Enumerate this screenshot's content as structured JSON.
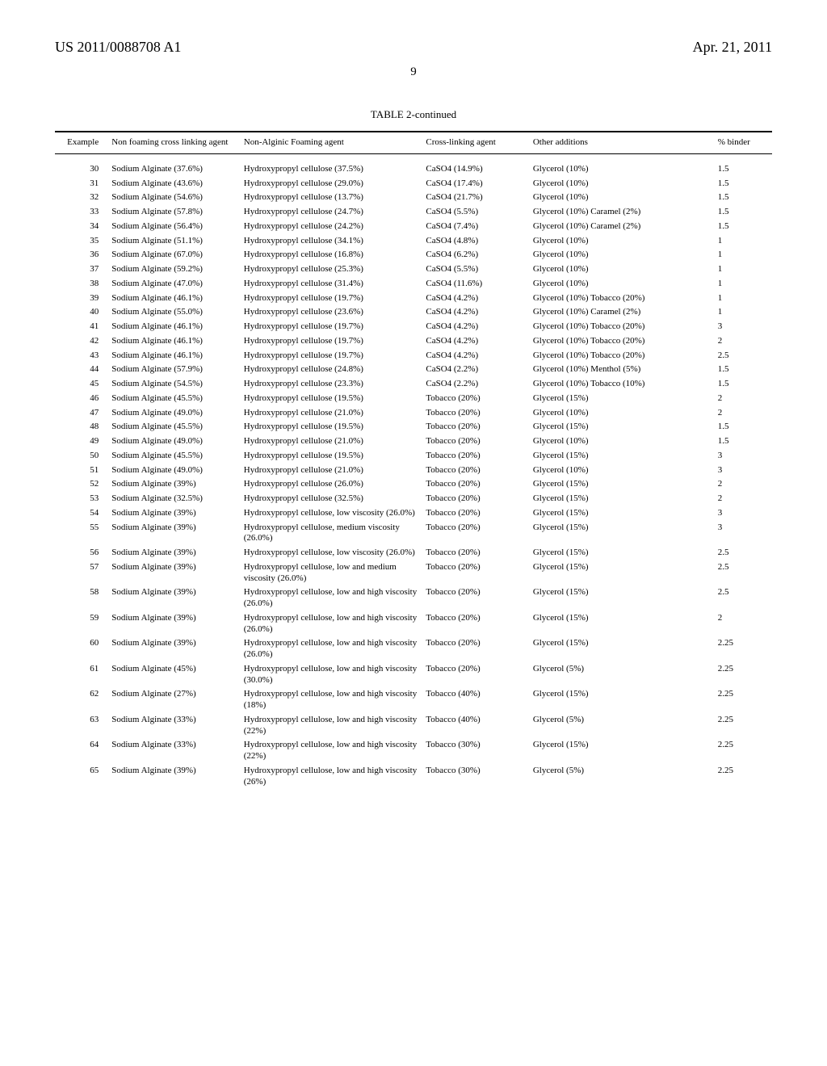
{
  "header": {
    "left": "US 2011/0088708 A1",
    "right": "Apr. 21, 2011"
  },
  "page_number": "9",
  "table_title": "TABLE 2-continued",
  "columns": {
    "example": "Example",
    "nonfoam": "Non foaming cross linking agent",
    "foaming": "Non-Alginic Foaming agent",
    "cross": "Cross-linking agent",
    "other": "Other additions",
    "binder": "% binder"
  },
  "rows": [
    {
      "ex": "30",
      "nf": "Sodium Alginate (37.6%)",
      "fa": "Hydroxypropyl cellulose (37.5%)",
      "cl": "CaSO4 (14.9%)",
      "ot": "Glycerol (10%)",
      "b": "1.5"
    },
    {
      "ex": "31",
      "nf": "Sodium Alginate (43.6%)",
      "fa": "Hydroxypropyl cellulose (29.0%)",
      "cl": "CaSO4 (17.4%)",
      "ot": "Glycerol (10%)",
      "b": "1.5"
    },
    {
      "ex": "32",
      "nf": "Sodium Alginate (54.6%)",
      "fa": "Hydroxypropyl cellulose (13.7%)",
      "cl": "CaSO4 (21.7%)",
      "ot": "Glycerol (10%)",
      "b": "1.5"
    },
    {
      "ex": "33",
      "nf": "Sodium Alginate (57.8%)",
      "fa": "Hydroxypropyl cellulose (24.7%)",
      "cl": "CaSO4 (5.5%)",
      "ot": "Glycerol (10%) Caramel (2%)",
      "b": "1.5"
    },
    {
      "ex": "34",
      "nf": "Sodium Alginate (56.4%)",
      "fa": "Hydroxypropyl cellulose (24.2%)",
      "cl": "CaSO4 (7.4%)",
      "ot": "Glycerol (10%) Caramel (2%)",
      "b": "1.5"
    },
    {
      "ex": "35",
      "nf": "Sodium Alginate (51.1%)",
      "fa": "Hydroxypropyl cellulose (34.1%)",
      "cl": "CaSO4 (4.8%)",
      "ot": "Glycerol (10%)",
      "b": "1"
    },
    {
      "ex": "36",
      "nf": "Sodium Alginate (67.0%)",
      "fa": "Hydroxypropyl cellulose (16.8%)",
      "cl": "CaSO4 (6.2%)",
      "ot": "Glycerol (10%)",
      "b": "1"
    },
    {
      "ex": "37",
      "nf": "Sodium Alginate (59.2%)",
      "fa": "Hydroxypropyl cellulose (25.3%)",
      "cl": "CaSO4 (5.5%)",
      "ot": "Glycerol (10%)",
      "b": "1"
    },
    {
      "ex": "38",
      "nf": "Sodium Alginate (47.0%)",
      "fa": "Hydroxypropyl cellulose (31.4%)",
      "cl": "CaSO4 (11.6%)",
      "ot": "Glycerol (10%)",
      "b": "1"
    },
    {
      "ex": "39",
      "nf": "Sodium Alginate (46.1%)",
      "fa": "Hydroxypropyl cellulose (19.7%)",
      "cl": "CaSO4 (4.2%)",
      "ot": "Glycerol (10%) Tobacco (20%)",
      "b": "1"
    },
    {
      "ex": "40",
      "nf": "Sodium Alginate (55.0%)",
      "fa": "Hydroxypropyl cellulose (23.6%)",
      "cl": "CaSO4 (4.2%)",
      "ot": "Glycerol (10%) Caramel (2%)",
      "b": "1"
    },
    {
      "ex": "41",
      "nf": "Sodium Alginate (46.1%)",
      "fa": "Hydroxypropyl cellulose (19.7%)",
      "cl": "CaSO4 (4.2%)",
      "ot": "Glycerol (10%) Tobacco (20%)",
      "b": "3"
    },
    {
      "ex": "42",
      "nf": "Sodium Alginate (46.1%)",
      "fa": "Hydroxypropyl cellulose (19.7%)",
      "cl": "CaSO4 (4.2%)",
      "ot": "Glycerol (10%) Tobacco (20%)",
      "b": "2"
    },
    {
      "ex": "43",
      "nf": "Sodium Alginate (46.1%)",
      "fa": "Hydroxypropyl cellulose (19.7%)",
      "cl": "CaSO4 (4.2%)",
      "ot": "Glycerol (10%) Tobacco (20%)",
      "b": "2.5"
    },
    {
      "ex": "44",
      "nf": "Sodium Alginate (57.9%)",
      "fa": "Hydroxypropyl cellulose (24.8%)",
      "cl": "CaSO4 (2.2%)",
      "ot": "Glycerol (10%) Menthol (5%)",
      "b": "1.5"
    },
    {
      "ex": "45",
      "nf": "Sodium Alginate (54.5%)",
      "fa": "Hydroxypropyl cellulose (23.3%)",
      "cl": "CaSO4 (2.2%)",
      "ot": "Glycerol (10%) Tobacco (10%)",
      "b": "1.5"
    },
    {
      "ex": "46",
      "nf": "Sodium Alginate (45.5%)",
      "fa": "Hydroxypropyl cellulose (19.5%)",
      "cl": "Tobacco (20%)",
      "ot": "Glycerol (15%)",
      "b": "2"
    },
    {
      "ex": "47",
      "nf": "Sodium Alginate (49.0%)",
      "fa": "Hydroxypropyl cellulose (21.0%)",
      "cl": "Tobacco (20%)",
      "ot": "Glycerol (10%)",
      "b": "2"
    },
    {
      "ex": "48",
      "nf": "Sodium Alginate (45.5%)",
      "fa": "Hydroxypropyl cellulose (19.5%)",
      "cl": "Tobacco (20%)",
      "ot": "Glycerol (15%)",
      "b": "1.5"
    },
    {
      "ex": "49",
      "nf": "Sodium Alginate (49.0%)",
      "fa": "Hydroxypropyl cellulose (21.0%)",
      "cl": "Tobacco (20%)",
      "ot": "Glycerol (10%)",
      "b": "1.5"
    },
    {
      "ex": "50",
      "nf": "Sodium Alginate (45.5%)",
      "fa": "Hydroxypropyl cellulose (19.5%)",
      "cl": "Tobacco (20%)",
      "ot": "Glycerol (15%)",
      "b": "3"
    },
    {
      "ex": "51",
      "nf": "Sodium Alginate (49.0%)",
      "fa": "Hydroxypropyl cellulose (21.0%)",
      "cl": "Tobacco (20%)",
      "ot": "Glycerol (10%)",
      "b": "3"
    },
    {
      "ex": "52",
      "nf": "Sodium Alginate (39%)",
      "fa": "Hydroxypropyl cellulose (26.0%)",
      "cl": "Tobacco (20%)",
      "ot": "Glycerol (15%)",
      "b": "2"
    },
    {
      "ex": "53",
      "nf": "Sodium Alginate (32.5%)",
      "fa": "Hydroxypropyl cellulose (32.5%)",
      "cl": "Tobacco (20%)",
      "ot": "Glycerol (15%)",
      "b": "2"
    },
    {
      "ex": "54",
      "nf": "Sodium Alginate (39%)",
      "fa": "Hydroxypropyl cellulose, low viscosity (26.0%)",
      "cl": "Tobacco (20%)",
      "ot": "Glycerol (15%)",
      "b": "3"
    },
    {
      "ex": "55",
      "nf": "Sodium Alginate (39%)",
      "fa": "Hydroxypropyl cellulose, medium viscosity (26.0%)",
      "cl": "Tobacco (20%)",
      "ot": "Glycerol (15%)",
      "b": "3"
    },
    {
      "ex": "56",
      "nf": "Sodium Alginate (39%)",
      "fa": "Hydroxypropyl cellulose, low viscosity (26.0%)",
      "cl": "Tobacco (20%)",
      "ot": "Glycerol (15%)",
      "b": "2.5"
    },
    {
      "ex": "57",
      "nf": "Sodium Alginate (39%)",
      "fa": "Hydroxypropyl cellulose, low and medium viscosity (26.0%)",
      "cl": "Tobacco (20%)",
      "ot": "Glycerol (15%)",
      "b": "2.5"
    },
    {
      "ex": "58",
      "nf": "Sodium Alginate (39%)",
      "fa": "Hydroxypropyl cellulose, low and high viscosity (26.0%)",
      "cl": "Tobacco (20%)",
      "ot": "Glycerol (15%)",
      "b": "2.5"
    },
    {
      "ex": "59",
      "nf": "Sodium Alginate (39%)",
      "fa": "Hydroxypropyl cellulose, low and high viscosity (26.0%)",
      "cl": "Tobacco (20%)",
      "ot": "Glycerol (15%)",
      "b": "2"
    },
    {
      "ex": "60",
      "nf": "Sodium Alginate (39%)",
      "fa": "Hydroxypropyl cellulose, low and high viscosity (26.0%)",
      "cl": "Tobacco (20%)",
      "ot": "Glycerol (15%)",
      "b": "2.25"
    },
    {
      "ex": "61",
      "nf": "Sodium Alginate (45%)",
      "fa": "Hydroxypropyl cellulose, low and high viscosity (30.0%)",
      "cl": "Tobacco (20%)",
      "ot": "Glycerol (5%)",
      "b": "2.25"
    },
    {
      "ex": "62",
      "nf": "Sodium Alginate (27%)",
      "fa": "Hydroxypropyl cellulose, low and high viscosity (18%)",
      "cl": "Tobacco (40%)",
      "ot": "Glycerol (15%)",
      "b": "2.25"
    },
    {
      "ex": "63",
      "nf": "Sodium Alginate (33%)",
      "fa": "Hydroxypropyl cellulose, low and high viscosity (22%)",
      "cl": "Tobacco (40%)",
      "ot": "Glycerol (5%)",
      "b": "2.25"
    },
    {
      "ex": "64",
      "nf": "Sodium Alginate (33%)",
      "fa": "Hydroxypropyl cellulose, low and high viscosity (22%)",
      "cl": "Tobacco (30%)",
      "ot": "Glycerol (15%)",
      "b": "2.25"
    },
    {
      "ex": "65",
      "nf": "Sodium Alginate (39%)",
      "fa": "Hydroxypropyl cellulose, low and high viscosity (26%)",
      "cl": "Tobacco (30%)",
      "ot": "Glycerol (5%)",
      "b": "2.25"
    }
  ]
}
